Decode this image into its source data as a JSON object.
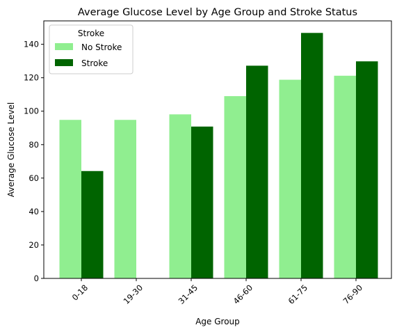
{
  "chart_data": {
    "type": "bar",
    "title": "Average Glucose Level by Age Group and Stroke Status",
    "xlabel": "Age Group",
    "ylabel": "Average Glucose Level",
    "categories": [
      "0-18",
      "19-30",
      "31-45",
      "46-60",
      "61-75",
      "76-90"
    ],
    "series": [
      {
        "name": "No Stroke",
        "color": "#90ee90",
        "values": [
          94.8,
          94.8,
          98.1,
          109.0,
          118.8,
          121.2
        ]
      },
      {
        "name": "Stroke",
        "color": "#006400",
        "values": [
          64.2,
          null,
          90.8,
          127.2,
          146.8,
          129.8
        ]
      }
    ],
    "ylim": [
      0,
      154
    ],
    "yticks": [
      0,
      20,
      40,
      60,
      80,
      100,
      120,
      140
    ],
    "legend": {
      "title": "Stroke",
      "position": "top-left"
    },
    "grid": false
  }
}
